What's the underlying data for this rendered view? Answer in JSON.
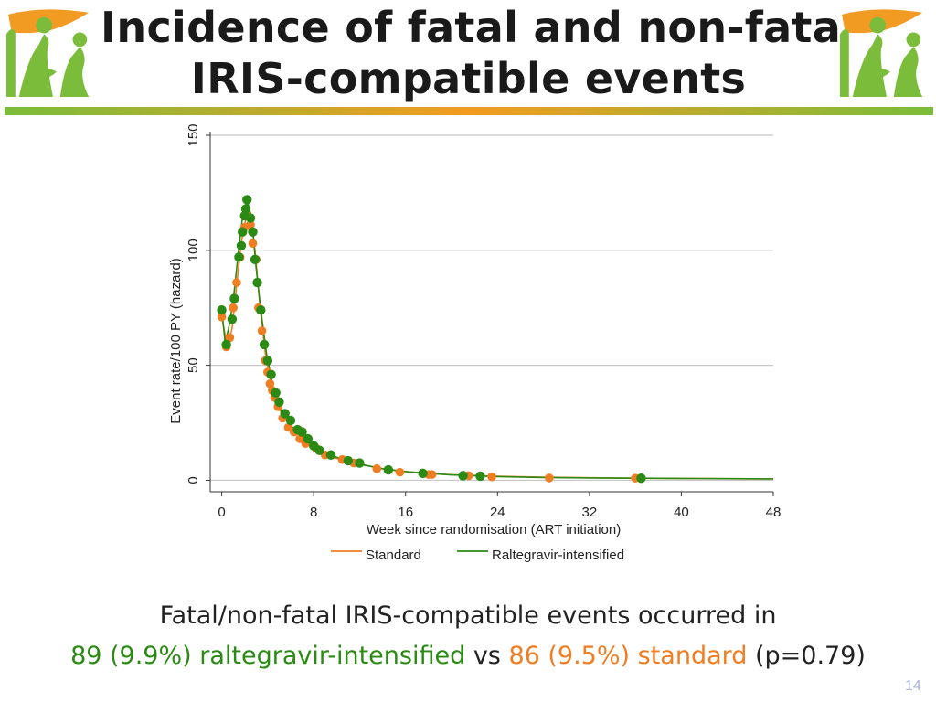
{
  "slide": {
    "title_line1": "Incidence of fatal and non-fatal",
    "title_line2": "IRIS-compatible events",
    "number": "14"
  },
  "caption": {
    "line1": "Fatal/non-fatal IRIS-compatible events occurred in",
    "line2_part1": "89 (9.9%) raltegravir-intensified",
    "line2_vs": " vs ",
    "line2_part2": "86 (9.5%) standard",
    "line2_p": " (p=0.79)",
    "color_raltegravir": "#2a8a14",
    "color_standard": "#ef7d22"
  },
  "colors": {
    "standard": "#ef7d22",
    "raltegravir": "#2a8a14",
    "logo_orange": "#f29b22",
    "logo_green": "#7bbd3b"
  },
  "chart_data": {
    "type": "line",
    "xlabel": "Week since randomisation (ART initiation)",
    "ylabel": "Event rate/100 PY (hazard)",
    "xlim": [
      -1,
      48
    ],
    "ylim": [
      -5,
      150
    ],
    "xticks": [
      0,
      8,
      16,
      24,
      32,
      40,
      48
    ],
    "yticks": [
      0,
      50,
      100,
      150
    ],
    "grid": "horizontal",
    "legend_position": "bottom",
    "series": [
      {
        "name": "Standard",
        "color": "#ef7d22",
        "curve": [
          [
            0,
            71
          ],
          [
            0.5,
            58
          ],
          [
            0.9,
            66
          ],
          [
            1.3,
            85
          ],
          [
            1.7,
            103
          ],
          [
            2.1,
            114
          ],
          [
            2.5,
            116
          ],
          [
            2.9,
            100
          ],
          [
            3.3,
            77
          ],
          [
            3.8,
            55
          ],
          [
            4.3,
            42
          ],
          [
            5,
            31
          ],
          [
            6,
            23
          ],
          [
            7,
            18
          ],
          [
            8,
            14
          ],
          [
            9,
            11.5
          ],
          [
            10,
            9.5
          ],
          [
            12,
            7
          ],
          [
            14,
            5
          ],
          [
            16,
            3.8
          ],
          [
            18,
            3
          ],
          [
            20,
            2.4
          ],
          [
            24,
            1.7
          ],
          [
            28,
            1.3
          ],
          [
            32,
            1.1
          ],
          [
            36,
            0.9
          ],
          [
            40,
            0.8
          ],
          [
            44,
            0.7
          ],
          [
            48,
            0.6
          ]
        ],
        "points": [
          [
            0,
            71
          ],
          [
            0.4,
            58
          ],
          [
            0.7,
            62
          ],
          [
            1.0,
            75
          ],
          [
            1.3,
            86
          ],
          [
            1.6,
            97
          ],
          [
            2.0,
            110
          ],
          [
            2.2,
            115
          ],
          [
            2.5,
            111
          ],
          [
            2.7,
            103
          ],
          [
            3.0,
            96
          ],
          [
            3.2,
            75
          ],
          [
            3.5,
            65
          ],
          [
            3.8,
            52
          ],
          [
            4.0,
            47
          ],
          [
            4.2,
            42
          ],
          [
            4.4,
            39
          ],
          [
            4.6,
            36
          ],
          [
            4.9,
            32
          ],
          [
            5.3,
            27
          ],
          [
            5.8,
            23
          ],
          [
            6.3,
            21
          ],
          [
            6.8,
            18
          ],
          [
            7.3,
            16
          ],
          [
            8.2,
            14
          ],
          [
            9.0,
            11
          ],
          [
            10.5,
            9
          ],
          [
            11.5,
            7.5
          ],
          [
            13.5,
            5
          ],
          [
            15.5,
            3.5
          ],
          [
            18,
            2.5
          ],
          [
            18.3,
            2.5
          ],
          [
            21.5,
            2.0
          ],
          [
            23.5,
            1.5
          ],
          [
            28.5,
            1.0
          ],
          [
            36,
            0.9
          ],
          [
            36.5,
            0.8
          ]
        ]
      },
      {
        "name": "Raltegravir-intensified",
        "color": "#2a8a14",
        "curve": [
          [
            0,
            74
          ],
          [
            0.3,
            60
          ],
          [
            0.6,
            66
          ],
          [
            1.0,
            78
          ],
          [
            1.4,
            97
          ],
          [
            1.8,
            114
          ],
          [
            2.2,
            122
          ],
          [
            2.6,
            114
          ],
          [
            3.0,
            92
          ],
          [
            3.4,
            74
          ],
          [
            3.9,
            55
          ],
          [
            4.5,
            40
          ],
          [
            5.2,
            30
          ],
          [
            6.0,
            24
          ],
          [
            7.0,
            18.5
          ],
          [
            8.0,
            14.5
          ],
          [
            9.0,
            12
          ],
          [
            10,
            10
          ],
          [
            12,
            7
          ],
          [
            14,
            5
          ],
          [
            16,
            3.8
          ],
          [
            18,
            3
          ],
          [
            20,
            2.3
          ],
          [
            24,
            1.6
          ],
          [
            28,
            1.2
          ],
          [
            32,
            1.0
          ],
          [
            36,
            0.9
          ],
          [
            40,
            0.8
          ],
          [
            44,
            0.7
          ],
          [
            48,
            0.6
          ]
        ],
        "points": [
          [
            0,
            74
          ],
          [
            0.4,
            59
          ],
          [
            0.9,
            70
          ],
          [
            1.1,
            79
          ],
          [
            1.5,
            97
          ],
          [
            1.7,
            102
          ],
          [
            1.8,
            108
          ],
          [
            2.0,
            115
          ],
          [
            2.1,
            118
          ],
          [
            2.2,
            122
          ],
          [
            2.5,
            114
          ],
          [
            2.7,
            108
          ],
          [
            2.9,
            96
          ],
          [
            3.1,
            86
          ],
          [
            3.4,
            74
          ],
          [
            3.7,
            59
          ],
          [
            4.0,
            52
          ],
          [
            4.3,
            46
          ],
          [
            4.7,
            38
          ],
          [
            5.0,
            34
          ],
          [
            5.5,
            29
          ],
          [
            6.0,
            26
          ],
          [
            6.6,
            22
          ],
          [
            7.0,
            21
          ],
          [
            7.5,
            18
          ],
          [
            8.0,
            15
          ],
          [
            8.5,
            13
          ],
          [
            9.5,
            11
          ],
          [
            11,
            8.5
          ],
          [
            12,
            7.5
          ],
          [
            14.5,
            4.5
          ],
          [
            17.5,
            3
          ],
          [
            21,
            2
          ],
          [
            22.5,
            1.8
          ],
          [
            36.5,
            0.9
          ]
        ]
      }
    ]
  }
}
